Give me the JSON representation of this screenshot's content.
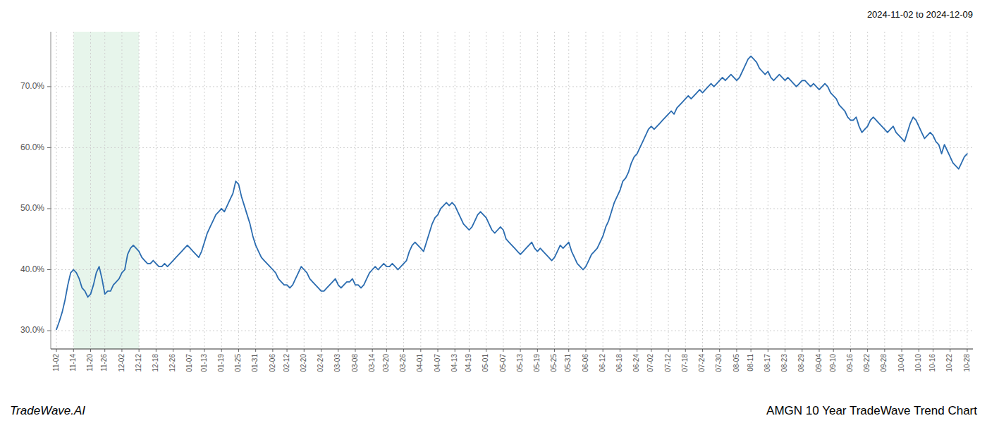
{
  "chart_data": {
    "type": "line",
    "title": "AMGN 10 Year TradeWave Trend Chart",
    "subtitle": "2024-11-02 to 2024-12-09",
    "annotations": [
      "TradeWave.AI"
    ],
    "color": "#2b6cb0",
    "ylim": [
      27.0,
      79.0
    ],
    "yticks": [
      {
        "value": 30.0,
        "label": "30.0%"
      },
      {
        "value": 40.0,
        "label": "40.0%"
      },
      {
        "value": 50.0,
        "label": "50.0%"
      },
      {
        "value": 60.0,
        "label": "60.0%"
      },
      {
        "value": 70.0,
        "label": "70.0%"
      }
    ],
    "grid": true,
    "highlight": {
      "from": "11-14",
      "to": "12-12",
      "color": "#d4edda"
    },
    "categories": [
      "11-02",
      null,
      null,
      null,
      null,
      null,
      "11-14",
      null,
      null,
      null,
      null,
      null,
      "11-20",
      null,
      null,
      null,
      null,
      "11-26",
      null,
      null,
      null,
      null,
      null,
      "12-02",
      null,
      null,
      null,
      null,
      null,
      "12-12",
      null,
      null,
      null,
      null,
      null,
      "12-18",
      null,
      null,
      null,
      null,
      null,
      "12-26",
      null,
      null,
      null,
      null,
      null,
      "01-07",
      null,
      null,
      null,
      null,
      "01-13",
      null,
      null,
      null,
      null,
      null,
      "01-19",
      null,
      null,
      null,
      null,
      null,
      "01-25",
      null,
      null,
      null,
      null,
      null,
      "01-31",
      null,
      null,
      null,
      null,
      null,
      "02-06",
      null,
      null,
      null,
      null,
      "02-12",
      null,
      null,
      null,
      null,
      null,
      "02-20",
      null,
      null,
      null,
      null,
      null,
      "02-24",
      null,
      null,
      null,
      null,
      null,
      "03-03",
      null,
      null,
      null,
      null,
      null,
      "03-08",
      null,
      null,
      null,
      null,
      null,
      "03-14",
      null,
      null,
      null,
      null,
      "03-20",
      null,
      null,
      null,
      null,
      null,
      "03-26",
      null,
      null,
      null,
      null,
      null,
      "04-01",
      null,
      null,
      null,
      null,
      null,
      "04-07",
      null,
      null,
      null,
      null,
      null,
      "04-13",
      null,
      null,
      null,
      null,
      "04-19",
      null,
      null,
      null,
      null,
      null,
      "05-01",
      null,
      null,
      null,
      null,
      null,
      "05-07",
      null,
      null,
      null,
      null,
      null,
      "05-13",
      null,
      null,
      null,
      null,
      null,
      "05-19",
      null,
      null,
      null,
      null,
      null,
      "05-25",
      null,
      null,
      null,
      null,
      "05-31",
      null,
      null,
      null,
      null,
      null,
      "06-06",
      null,
      null,
      null,
      null,
      null,
      "06-12",
      null,
      null,
      null,
      null,
      null,
      "06-18",
      null,
      null,
      null,
      null,
      null,
      "06-24",
      null,
      null,
      null,
      null,
      "07-02",
      null,
      null,
      null,
      null,
      null,
      "07-12",
      null,
      null,
      null,
      null,
      null,
      "07-18",
      null,
      null,
      null,
      null,
      null,
      "07-24",
      null,
      null,
      null,
      null,
      null,
      "07-30",
      null,
      null,
      null,
      null,
      null,
      "08-05",
      null,
      null,
      null,
      null,
      "08-11",
      null,
      null,
      null,
      null,
      null,
      "08-17",
      null,
      null,
      null,
      null,
      null,
      "08-23",
      null,
      null,
      null,
      null,
      null,
      "08-29",
      null,
      null,
      null,
      null,
      null,
      "09-04",
      null,
      null,
      null,
      null,
      "09-10",
      null,
      null,
      null,
      null,
      null,
      "09-16",
      null,
      null,
      null,
      null,
      null,
      "09-22",
      null,
      null,
      null,
      null,
      null,
      "09-28",
      null,
      null,
      null,
      null,
      null,
      "10-04",
      null,
      null,
      null,
      null,
      null,
      "10-10",
      null,
      null,
      null,
      null,
      "10-16",
      null,
      null,
      null,
      null,
      null,
      "10-22",
      null,
      null,
      null,
      null,
      null,
      "10-28"
    ],
    "values": [
      30.2,
      31.5,
      33.0,
      35.0,
      37.5,
      39.5,
      40.0,
      39.5,
      38.5,
      37.0,
      36.5,
      35.5,
      36.0,
      37.5,
      39.5,
      40.5,
      38.5,
      36.0,
      36.5,
      36.5,
      37.5,
      38.0,
      38.5,
      39.5,
      40.0,
      42.5,
      43.5,
      44.0,
      43.5,
      43.0,
      42.0,
      41.5,
      41.0,
      41.0,
      41.5,
      41.0,
      40.5,
      40.5,
      41.0,
      40.5,
      41.0,
      41.5,
      42.0,
      42.5,
      43.0,
      43.5,
      44.0,
      43.5,
      43.0,
      42.5,
      42.0,
      43.0,
      44.5,
      46.0,
      47.0,
      48.0,
      49.0,
      49.5,
      50.0,
      49.5,
      50.5,
      51.5,
      52.5,
      54.5,
      54.0,
      52.0,
      50.5,
      49.0,
      47.5,
      45.5,
      44.0,
      43.0,
      42.0,
      41.5,
      41.0,
      40.5,
      40.0,
      39.5,
      38.5,
      38.0,
      37.5,
      37.5,
      37.0,
      37.5,
      38.5,
      39.5,
      40.5,
      40.0,
      39.5,
      38.5,
      38.0,
      37.5,
      37.0,
      36.5,
      36.5,
      37.0,
      37.5,
      38.0,
      38.5,
      37.5,
      37.0,
      37.5,
      38.0,
      38.0,
      38.5,
      37.5,
      37.5,
      37.0,
      37.5,
      38.5,
      39.5,
      40.0,
      40.5,
      40.0,
      40.5,
      41.0,
      40.5,
      40.5,
      41.0,
      40.5,
      40.0,
      40.5,
      41.0,
      41.5,
      43.0,
      44.0,
      44.5,
      44.0,
      43.5,
      43.0,
      44.5,
      46.0,
      47.5,
      48.5,
      49.0,
      50.0,
      50.5,
      51.0,
      50.5,
      51.0,
      50.5,
      49.5,
      48.5,
      47.5,
      47.0,
      46.5,
      47.0,
      48.0,
      49.0,
      49.5,
      49.0,
      48.5,
      47.5,
      46.5,
      46.0,
      46.5,
      47.0,
      46.5,
      45.0,
      44.5,
      44.0,
      43.5,
      43.0,
      42.5,
      43.0,
      43.5,
      44.0,
      44.5,
      43.5,
      43.0,
      43.5,
      43.0,
      42.5,
      42.0,
      41.5,
      42.0,
      43.0,
      44.0,
      43.5,
      44.0,
      44.5,
      43.0,
      42.0,
      41.0,
      40.5,
      40.0,
      40.5,
      41.5,
      42.5,
      43.0,
      43.5,
      44.5,
      45.5,
      47.0,
      48.0,
      49.5,
      51.0,
      52.0,
      53.0,
      54.5,
      55.0,
      56.0,
      57.5,
      58.5,
      59.0,
      60.0,
      61.0,
      62.0,
      63.0,
      63.5,
      63.0,
      63.5,
      64.0,
      64.5,
      65.0,
      65.5,
      66.0,
      65.5,
      66.5,
      67.0,
      67.5,
      68.0,
      68.5,
      68.0,
      68.5,
      69.0,
      69.5,
      69.0,
      69.5,
      70.0,
      70.5,
      70.0,
      70.5,
      71.0,
      71.5,
      71.0,
      71.5,
      72.0,
      71.5,
      71.0,
      71.5,
      72.5,
      73.5,
      74.5,
      75.0,
      74.5,
      74.0,
      73.0,
      72.5,
      72.0,
      72.5,
      71.5,
      71.0,
      71.5,
      72.0,
      71.5,
      71.0,
      71.5,
      71.0,
      70.5,
      70.0,
      70.5,
      71.0,
      71.0,
      70.5,
      70.0,
      70.5,
      70.0,
      69.5,
      70.0,
      70.5,
      70.0,
      69.0,
      68.5,
      68.0,
      67.0,
      66.5,
      66.0,
      65.0,
      64.5,
      64.5,
      65.0,
      63.5,
      62.5,
      63.0,
      63.5,
      64.5,
      65.0,
      64.5,
      64.0,
      63.5,
      63.0,
      62.5,
      63.0,
      63.5,
      62.5,
      62.0,
      61.5,
      61.0,
      62.5,
      64.0,
      65.0,
      64.5,
      63.5,
      62.5,
      61.5,
      62.0,
      62.5,
      62.0,
      61.0,
      60.5,
      59.0,
      60.5,
      59.5,
      58.5,
      57.5,
      57.0,
      56.5,
      57.5,
      58.5,
      59.0
    ]
  }
}
